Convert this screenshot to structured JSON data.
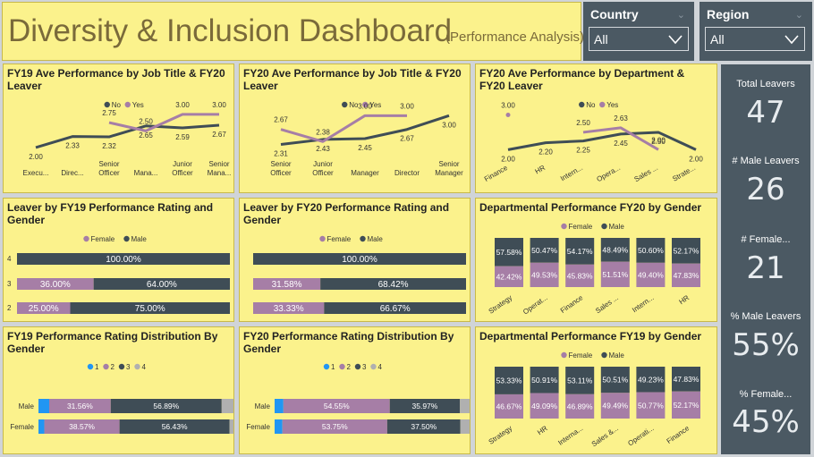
{
  "header": {
    "title": "Diversity & Inclusion Dashboard",
    "subtitle": "(Performance Analysis)"
  },
  "filters": [
    {
      "label": "Country",
      "value": "All"
    },
    {
      "label": "Region",
      "value": "All"
    }
  ],
  "kpis": [
    {
      "label": "Total Leavers",
      "value": "47"
    },
    {
      "label": "# Male Leavers",
      "value": "26"
    },
    {
      "label": "# Female...",
      "value": "21"
    },
    {
      "label": "% Male Leavers",
      "value": "55%"
    },
    {
      "label": "% Female...",
      "value": "45%"
    }
  ],
  "colors": {
    "male": "#3f4d56",
    "female": "#a67ea6",
    "panel": "#fbf28c",
    "dark": "#4b5963",
    "r1": "#2196f3",
    "r4": "#b0b0b0"
  },
  "chart_data": [
    {
      "id": "fy19-job",
      "type": "line",
      "title": "FY19 Ave Performance by Job Title & FY20 Leaver",
      "legend": [
        "No",
        "Yes"
      ],
      "categories": [
        "Execu...",
        "Direc...",
        "Senior Officer",
        "Mana...",
        "Junior Officer",
        "Senior Mana..."
      ],
      "series": [
        {
          "name": "No",
          "values": [
            2.0,
            2.33,
            2.32,
            2.65,
            2.59,
            2.67
          ]
        },
        {
          "name": "Yes",
          "values": [
            null,
            null,
            2.75,
            2.5,
            3.0,
            3.0
          ]
        }
      ],
      "ylim": [
        1.7,
        3.4
      ]
    },
    {
      "id": "fy20-job",
      "type": "line",
      "title": "FY20 Ave Performance by Job Title & FY20 Leaver",
      "legend": [
        "No",
        "Yes"
      ],
      "categories": [
        "Senior Officer",
        "Junior Officer",
        "Manager",
        "Director",
        "Senior Manager"
      ],
      "series": [
        {
          "name": "No",
          "values": [
            2.31,
            2.43,
            2.45,
            2.67,
            3.0
          ]
        },
        {
          "name": "Yes",
          "values": [
            2.67,
            2.38,
            3.0,
            3.0,
            null
          ]
        }
      ],
      "ylim": [
        2.0,
        3.35
      ]
    },
    {
      "id": "fy20-dept",
      "type": "line",
      "title": "FY20 Ave Performance by Department & FY20 Leaver",
      "legend": [
        "No",
        "Yes"
      ],
      "categories": [
        "Finance",
        "HR",
        "Intern...",
        "Opera...",
        "Sales ...",
        "Strate..."
      ],
      "series": [
        {
          "name": "No",
          "values": [
            2.0,
            2.2,
            2.25,
            2.45,
            2.5,
            2.0
          ]
        },
        {
          "name": "Yes",
          "values": [
            3.0,
            null,
            2.5,
            2.63,
            2.0,
            null
          ]
        }
      ],
      "ylim": [
        1.7,
        3.4
      ]
    },
    {
      "id": "leaver-fy19",
      "type": "bar",
      "title": "Leaver by FY19 Performance Rating and Gender",
      "legend": [
        "Female",
        "Male"
      ],
      "categories": [
        "4",
        "3",
        "2"
      ],
      "series": [
        {
          "name": "Female",
          "values": [
            0,
            36.0,
            25.0
          ]
        },
        {
          "name": "Male",
          "values": [
            100.0,
            64.0,
            75.0
          ]
        }
      ],
      "labels": [
        [
          "",
          "100.00%"
        ],
        [
          "36.00%",
          "64.00%"
        ],
        [
          "25.00%",
          "75.00%"
        ]
      ]
    },
    {
      "id": "leaver-fy20",
      "type": "bar",
      "title": "Leaver by FY20 Performance Rating and Gender",
      "legend": [
        "Female",
        "Male"
      ],
      "categories": [
        "",
        "",
        ""
      ],
      "series": [
        {
          "name": "Female",
          "values": [
            0,
            31.58,
            33.33
          ]
        },
        {
          "name": "Male",
          "values": [
            100.0,
            68.42,
            66.67
          ]
        }
      ],
      "labels": [
        [
          "",
          "100.00%"
        ],
        [
          "31.58%",
          "68.42%"
        ],
        [
          "33.33%",
          "66.67%"
        ]
      ]
    },
    {
      "id": "dept-fy20",
      "type": "bar",
      "title": "Departmental Performance FY20 by Gender",
      "legend": [
        "Female",
        "Male"
      ],
      "categories": [
        "Strategy",
        "Operat...",
        "Finance",
        "Sales ...",
        "Intern...",
        "HR"
      ],
      "series": [
        {
          "name": "Female",
          "values": [
            42.42,
            49.53,
            45.83,
            51.51,
            49.4,
            47.83
          ]
        },
        {
          "name": "Male",
          "values": [
            57.58,
            50.47,
            54.17,
            48.49,
            50.6,
            52.17
          ]
        }
      ],
      "labels": [
        [
          "42.42%",
          "57.58%"
        ],
        [
          "49.53%",
          "50.47%"
        ],
        [
          "45.83%",
          "54.17%"
        ],
        [
          "51.51%",
          "48.49%"
        ],
        [
          "49.40%",
          "50.60%"
        ],
        [
          "47.83%",
          "52.17%"
        ]
      ]
    },
    {
      "id": "dist-fy19",
      "type": "bar",
      "title": "FY19 Performance Rating Distribution By Gender",
      "legend": [
        "1",
        "2",
        "3",
        "4"
      ],
      "categories": [
        "Male",
        "Female"
      ],
      "series": [
        {
          "name": "1",
          "values": [
            5.5,
            3.0
          ]
        },
        {
          "name": "2",
          "values": [
            31.56,
            38.57
          ]
        },
        {
          "name": "3",
          "values": [
            56.89,
            56.43
          ]
        },
        {
          "name": "4",
          "values": [
            6.05,
            2.0
          ]
        }
      ],
      "labels": [
        [
          "",
          "31.56%",
          "56.89%",
          ""
        ],
        [
          "",
          "38.57%",
          "56.43%",
          ""
        ]
      ]
    },
    {
      "id": "dist-fy20",
      "type": "bar",
      "title": "FY20 Performance Rating Distribution By Gender",
      "legend": [
        "1",
        "2",
        "3",
        "4"
      ],
      "categories": [
        "Male",
        "Female"
      ],
      "series": [
        {
          "name": "1",
          "values": [
            4.5,
            4.0
          ]
        },
        {
          "name": "2",
          "values": [
            54.55,
            53.75
          ]
        },
        {
          "name": "3",
          "values": [
            35.97,
            37.5
          ]
        },
        {
          "name": "4",
          "values": [
            4.98,
            4.75
          ]
        }
      ],
      "labels": [
        [
          "",
          "54.55%",
          "35.97%",
          ""
        ],
        [
          "",
          "53.75%",
          "37.50%",
          ""
        ]
      ]
    },
    {
      "id": "dept-fy19",
      "type": "bar",
      "title": "Departmental Performance FY19 by Gender",
      "legend": [
        "Female",
        "Male"
      ],
      "categories": [
        "Strategy",
        "HR",
        "Interna...",
        "Sales &...",
        "Operati...",
        "Finance"
      ],
      "series": [
        {
          "name": "Female",
          "values": [
            46.67,
            49.09,
            46.89,
            49.49,
            50.77,
            52.17
          ]
        },
        {
          "name": "Male",
          "values": [
            53.33,
            50.91,
            53.11,
            50.51,
            49.23,
            47.83
          ]
        }
      ],
      "labels": [
        [
          "46.67%",
          "53.33%"
        ],
        [
          "49.09%",
          "50.91%"
        ],
        [
          "46.89%",
          "53.11%"
        ],
        [
          "49.49%",
          "50.51%"
        ],
        [
          "50.77%",
          "49.23%"
        ],
        [
          "52.17%",
          "47.83%"
        ]
      ]
    }
  ]
}
